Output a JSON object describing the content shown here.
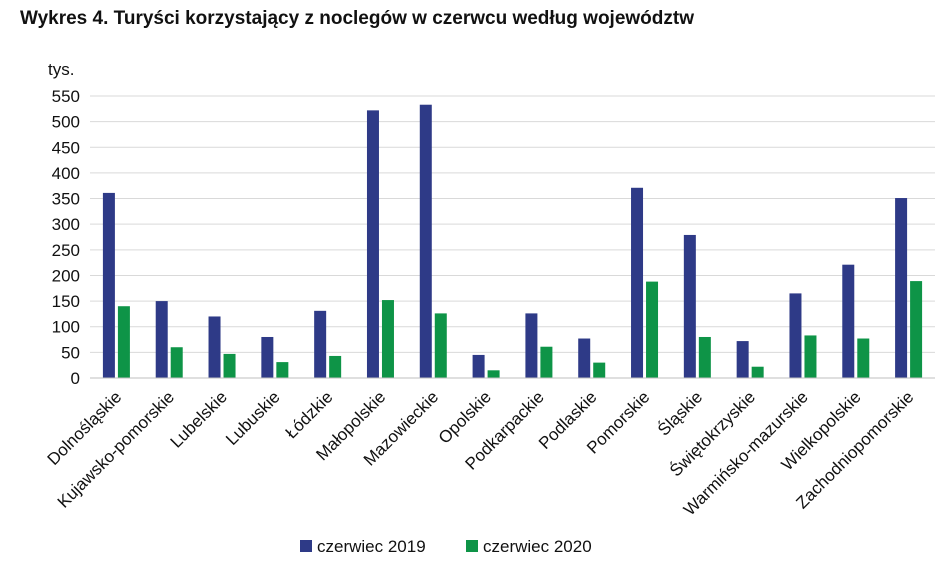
{
  "chart_data": {
    "type": "bar",
    "title": "Wykres 4. Turyści korzystający z noclegów w czerwcu według województw",
    "ylabel": "tys.",
    "xlabel": "",
    "ylim": [
      0,
      550
    ],
    "yticks": [
      0,
      50,
      100,
      150,
      200,
      250,
      300,
      350,
      400,
      450,
      500,
      550
    ],
    "grid": true,
    "legend_position": "bottom",
    "categories": [
      "Dolnośląskie",
      "Kujawsko-pomorskie",
      "Lubelskie",
      "Lubuskie",
      "Łódzkie",
      "Małopolskie",
      "Mazowieckie",
      "Opolskie",
      "Podkarpackie",
      "Podlaskie",
      "Pomorskie",
      "Śląskie",
      "Świętokrzyskie",
      "Warmińsko-mazurskie",
      "Wielkopolskie",
      "Zachodniopomorskie"
    ],
    "series": [
      {
        "name": "czerwiec 2019",
        "color": "#2e3a87",
        "values": [
          361,
          150,
          120,
          80,
          131,
          522,
          533,
          45,
          126,
          77,
          371,
          279,
          72,
          165,
          221,
          351
        ]
      },
      {
        "name": "czerwiec 2020",
        "color": "#0e9447",
        "values": [
          140,
          60,
          47,
          31,
          43,
          152,
          126,
          15,
          61,
          30,
          188,
          80,
          22,
          83,
          77,
          189
        ]
      }
    ]
  }
}
